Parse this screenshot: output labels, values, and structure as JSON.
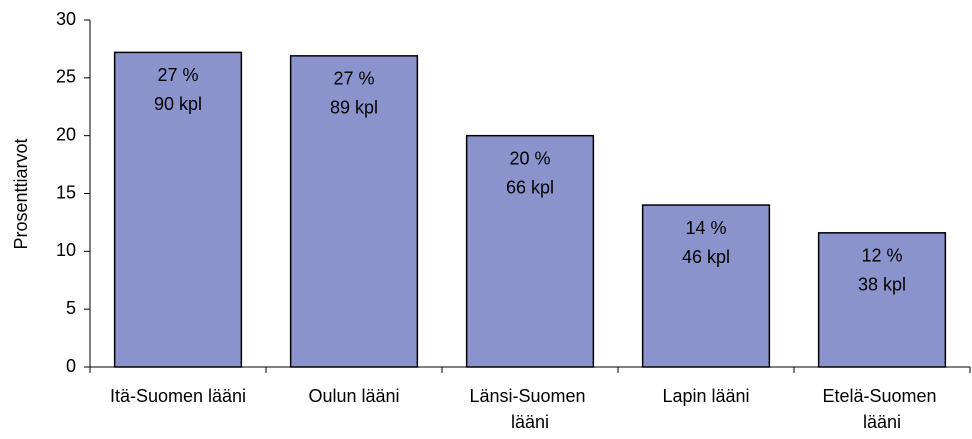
{
  "chart_data": {
    "type": "bar",
    "y_label": "Prosenttiarvot",
    "categories": [
      "Itä-Suomen lääni",
      "Oulun lääni",
      "Länsi-Suomen lääni",
      "Lapin lääni",
      "Etelä-Suomen lääni"
    ],
    "values": [
      27.2,
      26.9,
      20,
      14,
      11.6
    ],
    "value_labels": [
      "27 %",
      "27 %",
      "20 %",
      "14 %",
      "12 %"
    ],
    "count_labels": [
      "90 kpl",
      "89 kpl",
      "66 kpl",
      "46 kpl",
      "38 kpl"
    ],
    "color": "#8b93cc",
    "ylim": [
      0,
      30
    ],
    "yticks": [
      0,
      5,
      10,
      15,
      20,
      25,
      30
    ],
    "grid": false
  }
}
